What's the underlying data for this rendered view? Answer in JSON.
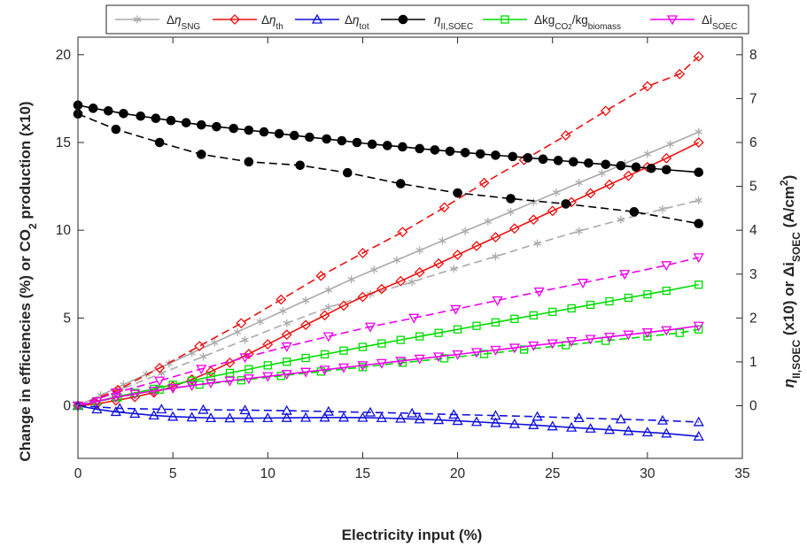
{
  "chart_data": {
    "type": "line",
    "xlabel": "Electricity input (%)",
    "ylabel_left": "Change in efficiencies (%) or CO₂ production (x10)",
    "ylabel_right": "η_II,SOEC (x10) or Δi_SOEC (A/cm²)",
    "xlim": [
      0,
      35
    ],
    "ylim_left": [
      -3,
      21
    ],
    "ylim_right": [
      -1.2,
      8.4
    ],
    "x_ticks": [
      0,
      5,
      10,
      15,
      20,
      25,
      30,
      35
    ],
    "y_left_ticks": [
      0,
      5,
      10,
      15,
      20
    ],
    "y_right_ticks": [
      0,
      1,
      2,
      3,
      4,
      5,
      6,
      7,
      8
    ],
    "grid": false,
    "legend_position": "top",
    "legend": [
      {
        "label": "ΔηSNG",
        "color": "#aaaaaa",
        "marker": "asterisk"
      },
      {
        "label": "Δηth",
        "color": "#ee1111",
        "marker": "diamond"
      },
      {
        "label": "Δηtot",
        "color": "#1111dd",
        "marker": "triangle-up"
      },
      {
        "label": "ηII,SOEC",
        "color": "#000000",
        "marker": "filled-circle"
      },
      {
        "label": "ΔkgCO2/kgbiomass",
        "color": "#00dd00",
        "marker": "square"
      },
      {
        "label": "ΔiSOEC",
        "color": "#ee00ee",
        "marker": "triangle-down"
      }
    ],
    "series": [
      {
        "name": "ΔηSNG",
        "style": "solid",
        "axis": "left",
        "color": "#aaaaaa",
        "marker": "asterisk",
        "x": [
          0,
          1.2,
          2.4,
          3.6,
          4.8,
          6.0,
          7.2,
          8.4,
          9.6,
          10.8,
          12.0,
          13.2,
          14.4,
          15.6,
          16.8,
          18.0,
          19.2,
          20.4,
          21.6,
          22.8,
          24.0,
          25.2,
          26.4,
          27.6,
          28.8,
          30.0,
          31.2,
          32.7
        ],
        "y": [
          0,
          0.6,
          1.2,
          1.8,
          2.4,
          3.0,
          3.6,
          4.2,
          4.8,
          5.4,
          6.0,
          6.6,
          7.2,
          7.75,
          8.3,
          8.85,
          9.4,
          9.95,
          10.5,
          11.05,
          11.6,
          12.15,
          12.7,
          13.25,
          13.8,
          14.35,
          14.9,
          15.6
        ]
      },
      {
        "name": "ΔηSNG",
        "style": "dashed",
        "axis": "left",
        "color": "#aaaaaa",
        "marker": "asterisk",
        "x": [
          0,
          2.2,
          4.4,
          6.6,
          8.8,
          11.0,
          13.2,
          15.4,
          17.6,
          19.8,
          22.0,
          24.2,
          26.4,
          28.6,
          30.8,
          32.7
        ],
        "y": [
          0,
          0.9,
          1.85,
          2.8,
          3.75,
          4.7,
          5.6,
          6.35,
          7.05,
          7.8,
          8.5,
          9.25,
          9.95,
          10.6,
          11.2,
          11.7
        ]
      },
      {
        "name": "Δηth",
        "style": "solid",
        "axis": "left",
        "color": "#ee1111",
        "marker": "diamond",
        "x": [
          0,
          1.0,
          2.0,
          3.0,
          4.0,
          5.0,
          6.0,
          7.0,
          8.0,
          9.0,
          10.0,
          11.0,
          12.0,
          13.0,
          14.0,
          15.0,
          16.0,
          17.0,
          18.0,
          19.0,
          20.0,
          21.0,
          22.0,
          23.0,
          24.0,
          25.0,
          26.0,
          27.0,
          28.0,
          29.0,
          30.0,
          31.0,
          32.7
        ],
        "y": [
          0,
          0.1,
          0.3,
          0.5,
          0.75,
          1.1,
          1.5,
          1.95,
          2.45,
          2.95,
          3.5,
          4.05,
          4.6,
          5.15,
          5.7,
          6.2,
          6.65,
          7.1,
          7.6,
          8.1,
          8.6,
          9.1,
          9.6,
          10.1,
          10.6,
          11.1,
          11.6,
          12.1,
          12.6,
          13.1,
          13.6,
          14.1,
          15.0
        ]
      },
      {
        "name": "Δηth",
        "style": "dashed",
        "axis": "left",
        "color": "#ee1111",
        "marker": "diamond",
        "x": [
          0,
          2.1,
          4.3,
          6.4,
          8.6,
          10.7,
          12.8,
          15.0,
          17.1,
          19.3,
          21.4,
          23.5,
          25.7,
          27.8,
          30.0,
          31.7,
          32.7
        ],
        "y": [
          0,
          0.9,
          2.15,
          3.4,
          4.7,
          6.05,
          7.4,
          8.7,
          9.9,
          11.3,
          12.7,
          14.0,
          15.4,
          16.8,
          18.2,
          18.9,
          19.9
        ]
      },
      {
        "name": "Δηtot",
        "style": "solid",
        "axis": "left",
        "color": "#1111dd",
        "marker": "triangle-up",
        "x": [
          0,
          1.0,
          2.0,
          3.0,
          4.0,
          5.0,
          6.0,
          7.0,
          8.0,
          9.0,
          10.0,
          11.0,
          12.0,
          13.0,
          14.0,
          15.0,
          16.0,
          17.0,
          18.0,
          19.0,
          20.0,
          21.0,
          22.0,
          23.0,
          24.0,
          25.0,
          26.0,
          27.0,
          28.0,
          29.0,
          30.0,
          31.0,
          32.7
        ],
        "y": [
          0,
          -0.2,
          -0.35,
          -0.45,
          -0.55,
          -0.62,
          -0.66,
          -0.7,
          -0.71,
          -0.71,
          -0.7,
          -0.69,
          -0.68,
          -0.67,
          -0.67,
          -0.68,
          -0.7,
          -0.73,
          -0.77,
          -0.81,
          -0.86,
          -0.92,
          -0.98,
          -1.04,
          -1.1,
          -1.17,
          -1.24,
          -1.3,
          -1.37,
          -1.44,
          -1.51,
          -1.58,
          -1.75
        ]
      },
      {
        "name": "Δηtot",
        "style": "dashed",
        "axis": "left",
        "color": "#1111dd",
        "marker": "triangle-up",
        "x": [
          0,
          2.2,
          4.4,
          6.6,
          8.8,
          11.0,
          13.2,
          15.4,
          17.6,
          19.8,
          22.0,
          24.2,
          26.4,
          28.6,
          30.8,
          32.7
        ],
        "y": [
          0,
          -0.15,
          -0.2,
          -0.23,
          -0.25,
          -0.28,
          -0.33,
          -0.38,
          -0.43,
          -0.5,
          -0.56,
          -0.62,
          -0.7,
          -0.77,
          -0.84,
          -0.93
        ]
      },
      {
        "name": "ηII,SOEC",
        "style": "solid",
        "axis": "right",
        "color": "#000000",
        "marker": "filled-circle",
        "x": [
          0,
          0.8,
          1.6,
          2.4,
          3.3,
          4.1,
          4.9,
          5.7,
          6.5,
          7.3,
          8.2,
          9.0,
          9.8,
          10.6,
          11.4,
          12.2,
          13.1,
          13.9,
          14.7,
          15.5,
          16.3,
          17.1,
          18.0,
          18.8,
          19.6,
          20.4,
          21.2,
          22.0,
          22.9,
          23.7,
          24.5,
          25.3,
          26.1,
          26.9,
          27.8,
          28.6,
          29.4,
          30.2,
          31.0,
          32.7
        ],
        "y": [
          6.85,
          6.78,
          6.72,
          6.66,
          6.6,
          6.55,
          6.5,
          6.45,
          6.4,
          6.36,
          6.32,
          6.28,
          6.24,
          6.2,
          6.16,
          6.12,
          6.08,
          6.04,
          6.0,
          5.96,
          5.93,
          5.9,
          5.86,
          5.83,
          5.8,
          5.77,
          5.74,
          5.71,
          5.68,
          5.65,
          5.62,
          5.59,
          5.56,
          5.53,
          5.5,
          5.47,
          5.44,
          5.41,
          5.38,
          5.32
        ]
      },
      {
        "name": "ηII,SOEC",
        "style": "dashed",
        "axis": "right",
        "color": "#000000",
        "marker": "filled-circle",
        "x": [
          0,
          2.0,
          4.3,
          6.5,
          9.0,
          11.7,
          14.2,
          17.0,
          20.0,
          22.8,
          25.7,
          29.3,
          32.7
        ],
        "y": [
          6.65,
          6.3,
          6.0,
          5.73,
          5.56,
          5.48,
          5.31,
          5.06,
          4.85,
          4.72,
          4.6,
          4.42,
          4.15
        ]
      },
      {
        "name": "ΔkgCO2/kgbiomass",
        "style": "solid",
        "axis": "left",
        "color": "#00dd00",
        "marker": "square",
        "x": [
          0,
          1.0,
          2.0,
          3.0,
          4.0,
          5.0,
          6.0,
          7.0,
          8.0,
          9.0,
          10.0,
          11.0,
          12.0,
          13.0,
          14.0,
          15.0,
          16.0,
          17.0,
          18.0,
          19.0,
          20.0,
          21.0,
          22.0,
          23.0,
          24.0,
          25.0,
          26.0,
          27.0,
          28.0,
          29.0,
          30.0,
          31.0,
          32.7
        ],
        "y": [
          0,
          0.25,
          0.5,
          0.73,
          0.96,
          1.2,
          1.43,
          1.65,
          1.87,
          2.08,
          2.3,
          2.51,
          2.72,
          2.93,
          3.14,
          3.35,
          3.55,
          3.75,
          3.95,
          4.15,
          4.35,
          4.55,
          4.75,
          4.95,
          5.15,
          5.35,
          5.55,
          5.75,
          5.95,
          6.15,
          6.35,
          6.55,
          6.9
        ]
      },
      {
        "name": "ΔkgCO2/kgbiomass",
        "style": "dashed",
        "axis": "left",
        "color": "#00dd00",
        "marker": "square",
        "x": [
          0,
          2.1,
          4.3,
          6.4,
          8.6,
          10.7,
          12.8,
          15.0,
          17.1,
          19.3,
          21.4,
          23.5,
          25.7,
          27.8,
          30.0,
          31.7,
          32.7
        ],
        "y": [
          0,
          0.48,
          0.92,
          1.2,
          1.45,
          1.7,
          1.95,
          2.2,
          2.45,
          2.7,
          2.95,
          3.2,
          3.45,
          3.7,
          3.95,
          4.15,
          4.35
        ]
      },
      {
        "name": "ΔiSOEC",
        "style": "solid",
        "axis": "right",
        "color": "#ee00ee",
        "marker": "triangle-down",
        "x": [
          0,
          1.0,
          2.0,
          3.0,
          4.0,
          5.0,
          6.0,
          7.0,
          8.0,
          9.0,
          10.0,
          11.0,
          12.0,
          13.0,
          14.0,
          15.0,
          16.0,
          17.0,
          18.0,
          19.0,
          20.0,
          21.0,
          22.0,
          23.0,
          24.0,
          25.0,
          26.0,
          27.0,
          28.0,
          29.0,
          30.0,
          31.0,
          32.7
        ],
        "y": [
          0,
          0.1,
          0.19,
          0.27,
          0.34,
          0.4,
          0.46,
          0.52,
          0.57,
          0.62,
          0.67,
          0.72,
          0.77,
          0.82,
          0.87,
          0.92,
          0.97,
          1.02,
          1.07,
          1.12,
          1.17,
          1.22,
          1.27,
          1.32,
          1.37,
          1.42,
          1.47,
          1.52,
          1.57,
          1.62,
          1.67,
          1.72,
          1.82
        ]
      },
      {
        "name": "ΔiSOEC",
        "style": "dashed",
        "axis": "right",
        "color": "#ee00ee",
        "marker": "triangle-down",
        "x": [
          0,
          2.0,
          4.3,
          6.5,
          8.8,
          11.0,
          13.2,
          15.4,
          17.7,
          19.9,
          22.1,
          24.3,
          26.6,
          28.8,
          31.0,
          32.7
        ],
        "y": [
          0,
          0.3,
          0.57,
          0.84,
          1.1,
          1.35,
          1.58,
          1.8,
          2.0,
          2.2,
          2.4,
          2.6,
          2.8,
          3.0,
          3.2,
          3.38
        ]
      }
    ]
  }
}
